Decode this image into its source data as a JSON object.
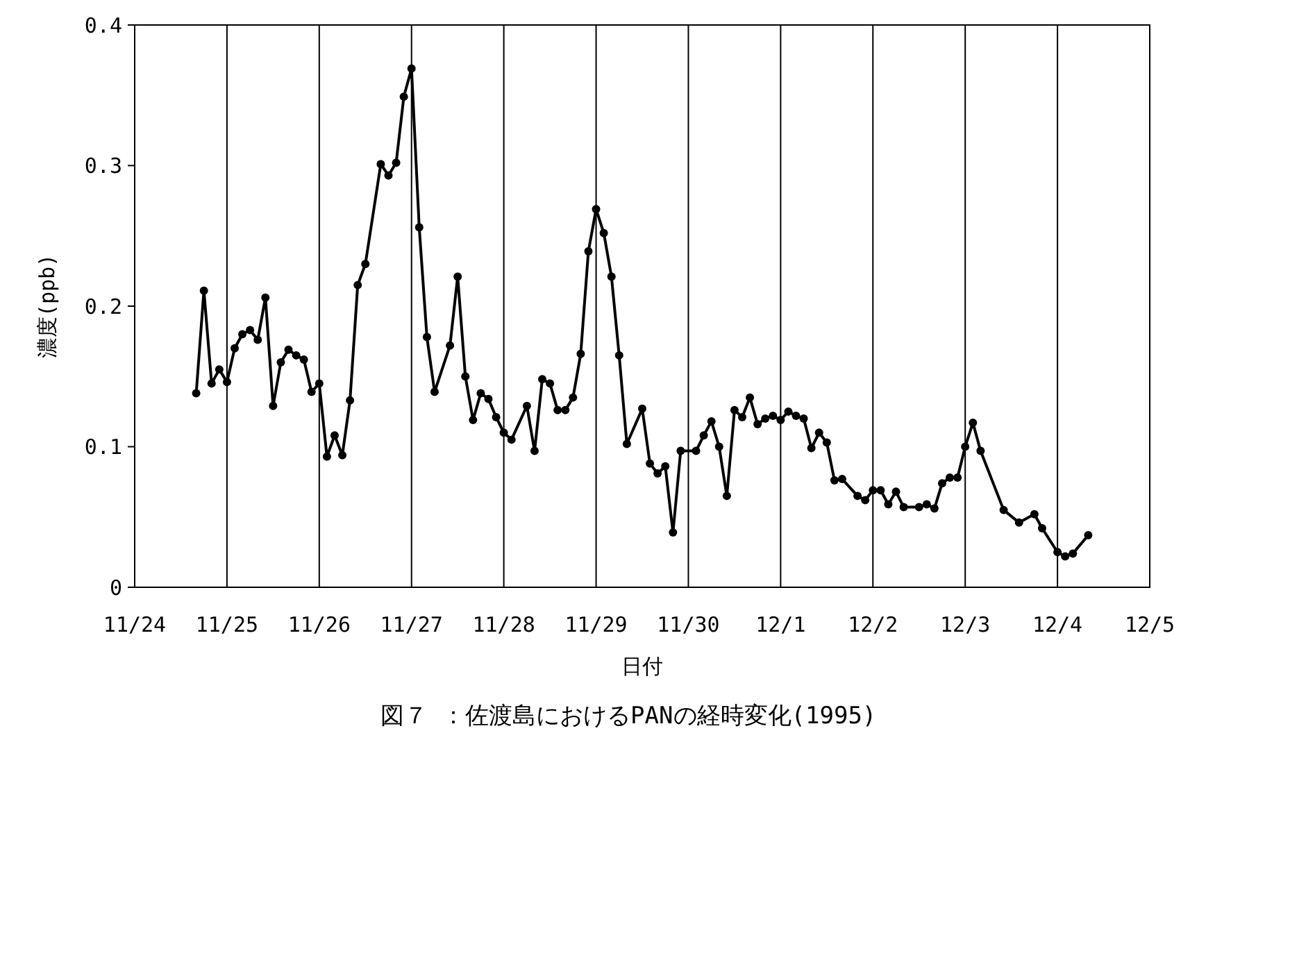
{
  "chart_data": {
    "type": "line",
    "title": "図７ ：佐渡島におけるPANの経時変化(1995)",
    "xlabel": "日付",
    "ylabel": "濃度(ppb)",
    "x": [
      "1995-11-24T16:00",
      "1995-11-24T18:00",
      "1995-11-24T20:00",
      "1995-11-24T22:00",
      "1995-11-25T00:00",
      "1995-11-25T02:00",
      "1995-11-25T04:00",
      "1995-11-25T06:00",
      "1995-11-25T08:00",
      "1995-11-25T10:00",
      "1995-11-25T12:00",
      "1995-11-25T14:00",
      "1995-11-25T16:00",
      "1995-11-25T18:00",
      "1995-11-25T20:00",
      "1995-11-25T22:00",
      "1995-11-26T00:00",
      "1995-11-26T02:00",
      "1995-11-26T04:00",
      "1995-11-26T06:00",
      "1995-11-26T08:00",
      "1995-11-26T10:00",
      "1995-11-26T12:00",
      "1995-11-26T16:00",
      "1995-11-26T18:00",
      "1995-11-26T20:00",
      "1995-11-26T22:00",
      "1995-11-27T00:00",
      "1995-11-27T02:00",
      "1995-11-27T04:00",
      "1995-11-27T06:00",
      "1995-11-27T10:00",
      "1995-11-27T12:00",
      "1995-11-27T14:00",
      "1995-11-27T16:00",
      "1995-11-27T18:00",
      "1995-11-27T20:00",
      "1995-11-27T22:00",
      "1995-11-28T00:00",
      "1995-11-28T02:00",
      "1995-11-28T06:00",
      "1995-11-28T08:00",
      "1995-11-28T10:00",
      "1995-11-28T12:00",
      "1995-11-28T14:00",
      "1995-11-28T16:00",
      "1995-11-28T18:00",
      "1995-11-28T20:00",
      "1995-11-28T22:00",
      "1995-11-29T00:00",
      "1995-11-29T02:00",
      "1995-11-29T04:00",
      "1995-11-29T06:00",
      "1995-11-29T08:00",
      "1995-11-29T12:00",
      "1995-11-29T14:00",
      "1995-11-29T16:00",
      "1995-11-29T18:00",
      "1995-11-29T20:00",
      "1995-11-29T22:00",
      "1995-11-30T02:00",
      "1995-11-30T04:00",
      "1995-11-30T06:00",
      "1995-11-30T08:00",
      "1995-11-30T10:00",
      "1995-11-30T12:00",
      "1995-11-30T14:00",
      "1995-11-30T16:00",
      "1995-11-30T18:00",
      "1995-11-30T20:00",
      "1995-11-30T22:00",
      "1995-12-01T00:00",
      "1995-12-01T02:00",
      "1995-12-01T04:00",
      "1995-12-01T06:00",
      "1995-12-01T08:00",
      "1995-12-01T10:00",
      "1995-12-01T12:00",
      "1995-12-01T14:00",
      "1995-12-01T16:00",
      "1995-12-01T20:00",
      "1995-12-01T22:00",
      "1995-12-02T00:00",
      "1995-12-02T02:00",
      "1995-12-02T04:00",
      "1995-12-02T06:00",
      "1995-12-02T08:00",
      "1995-12-02T12:00",
      "1995-12-02T14:00",
      "1995-12-02T16:00",
      "1995-12-02T18:00",
      "1995-12-02T20:00",
      "1995-12-02T22:00",
      "1995-12-03T00:00",
      "1995-12-03T02:00",
      "1995-12-03T04:00",
      "1995-12-03T10:00",
      "1995-12-03T14:00",
      "1995-12-03T18:00",
      "1995-12-03T20:00",
      "1995-12-04T00:00",
      "1995-12-04T02:00",
      "1995-12-04T04:00",
      "1995-12-04T08:00"
    ],
    "series": [
      {
        "color": "#000000",
        "values": [
          0.138,
          0.211,
          0.145,
          0.155,
          0.146,
          0.17,
          0.18,
          0.183,
          0.176,
          0.206,
          0.129,
          0.16,
          0.169,
          0.165,
          0.162,
          0.139,
          0.145,
          0.093,
          0.108,
          0.094,
          0.133,
          0.215,
          0.23,
          0.301,
          0.293,
          0.302,
          0.349,
          0.369,
          0.256,
          0.178,
          0.139,
          0.172,
          0.221,
          0.15,
          0.119,
          0.138,
          0.134,
          0.121,
          0.11,
          0.105,
          0.129,
          0.097,
          0.148,
          0.145,
          0.126,
          0.126,
          0.135,
          0.166,
          0.239,
          0.269,
          0.252,
          0.221,
          0.165,
          0.102,
          0.127,
          0.088,
          0.081,
          0.086,
          0.039,
          0.097,
          0.097,
          0.108,
          0.118,
          0.1,
          0.065,
          0.126,
          0.121,
          0.135,
          0.116,
          0.12,
          0.122,
          0.119,
          0.125,
          0.122,
          0.12,
          0.099,
          0.11,
          0.103,
          0.076,
          0.077,
          0.065,
          0.062,
          0.069,
          0.069,
          0.059,
          0.068,
          0.057,
          0.057,
          0.059,
          0.056,
          0.074,
          0.078,
          0.078,
          0.1,
          0.117,
          0.097,
          0.055,
          0.046,
          0.052,
          0.042,
          0.025,
          0.022,
          0.024,
          0.037
        ]
      }
    ],
    "xlim": [
      "1995-11-24",
      "1995-12-05"
    ],
    "xticks": [
      {
        "value": "1995-11-24",
        "label": "11/24"
      },
      {
        "value": "1995-11-25",
        "label": "11/25"
      },
      {
        "value": "1995-11-26",
        "label": "11/26"
      },
      {
        "value": "1995-11-27",
        "label": "11/27"
      },
      {
        "value": "1995-11-28",
        "label": "11/28"
      },
      {
        "value": "1995-11-29",
        "label": "11/29"
      },
      {
        "value": "1995-11-30",
        "label": "11/30"
      },
      {
        "value": "1995-12-01",
        "label": "12/1"
      },
      {
        "value": "1995-12-02",
        "label": "12/2"
      },
      {
        "value": "1995-12-03",
        "label": "12/3"
      },
      {
        "value": "1995-12-04",
        "label": "12/4"
      },
      {
        "value": "1995-12-05",
        "label": "12/5"
      }
    ],
    "ylim": [
      0,
      0.4
    ],
    "yticks": [
      0,
      0.1,
      0.2,
      0.3,
      0.4
    ],
    "grid": "x",
    "marker": "circle",
    "line_style": "solid"
  }
}
